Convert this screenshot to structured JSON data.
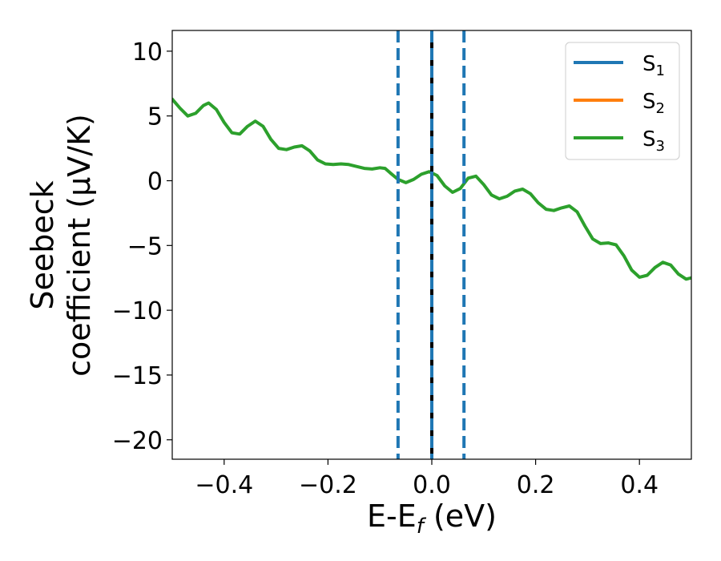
{
  "chart_data": {
    "type": "line",
    "xlabel_main": "E-E",
    "xlabel_sub": "f",
    "xlabel_tail": " (eV)",
    "ylabel_line1": "Seebeck",
    "ylabel_line2": "coefficient  (μV/K)",
    "xlim": [
      -0.5,
      0.5
    ],
    "ylim": [
      -21.5,
      11.6
    ],
    "xticks": [
      -0.4,
      -0.2,
      0.0,
      0.2,
      0.4
    ],
    "xtick_labels": [
      "−0.4",
      "−0.2",
      "0.0",
      "0.2",
      "0.4"
    ],
    "yticks": [
      10,
      5,
      0,
      -5,
      -10,
      -15,
      -20
    ],
    "ytick_labels": [
      "10",
      "5",
      "0",
      "−5",
      "−10",
      "−15",
      "−20"
    ],
    "grid": false,
    "legend_position": "top-right",
    "series": [
      {
        "name_main": "S",
        "name_sub": "1",
        "color": "#1f77b4",
        "points": []
      },
      {
        "name_main": "S",
        "name_sub": "2",
        "color": "#ff7f0e",
        "points": []
      },
      {
        "name_main": "S",
        "name_sub": "3",
        "color": "#2ca02c",
        "points": [
          [
            -0.5,
            6.3
          ],
          [
            -0.485,
            5.6
          ],
          [
            -0.47,
            5.0
          ],
          [
            -0.455,
            5.2
          ],
          [
            -0.44,
            5.8
          ],
          [
            -0.43,
            6.0
          ],
          [
            -0.415,
            5.5
          ],
          [
            -0.4,
            4.5
          ],
          [
            -0.385,
            3.7
          ],
          [
            -0.37,
            3.6
          ],
          [
            -0.355,
            4.2
          ],
          [
            -0.34,
            4.6
          ],
          [
            -0.325,
            4.2
          ],
          [
            -0.31,
            3.2
          ],
          [
            -0.295,
            2.5
          ],
          [
            -0.28,
            2.4
          ],
          [
            -0.265,
            2.6
          ],
          [
            -0.25,
            2.7
          ],
          [
            -0.235,
            2.3
          ],
          [
            -0.22,
            1.6
          ],
          [
            -0.205,
            1.3
          ],
          [
            -0.19,
            1.25
          ],
          [
            -0.175,
            1.3
          ],
          [
            -0.16,
            1.25
          ],
          [
            -0.145,
            1.1
          ],
          [
            -0.13,
            0.95
          ],
          [
            -0.115,
            0.9
          ],
          [
            -0.1,
            1.0
          ],
          [
            -0.09,
            0.95
          ],
          [
            -0.08,
            0.6
          ],
          [
            -0.065,
            0.1
          ],
          [
            -0.05,
            -0.15
          ],
          [
            -0.035,
            0.1
          ],
          [
            -0.02,
            0.5
          ],
          [
            -0.005,
            0.7
          ],
          [
            0.01,
            0.4
          ],
          [
            0.025,
            -0.4
          ],
          [
            0.04,
            -0.9
          ],
          [
            0.055,
            -0.6
          ],
          [
            0.07,
            0.2
          ],
          [
            0.085,
            0.35
          ],
          [
            0.1,
            -0.3
          ],
          [
            0.115,
            -1.1
          ],
          [
            0.13,
            -1.4
          ],
          [
            0.145,
            -1.2
          ],
          [
            0.16,
            -0.8
          ],
          [
            0.175,
            -0.65
          ],
          [
            0.19,
            -1.0
          ],
          [
            0.205,
            -1.7
          ],
          [
            0.22,
            -2.2
          ],
          [
            0.235,
            -2.3
          ],
          [
            0.25,
            -2.1
          ],
          [
            0.265,
            -1.95
          ],
          [
            0.28,
            -2.4
          ],
          [
            0.295,
            -3.5
          ],
          [
            0.31,
            -4.5
          ],
          [
            0.325,
            -4.85
          ],
          [
            0.34,
            -4.8
          ],
          [
            0.355,
            -4.95
          ],
          [
            0.37,
            -5.8
          ],
          [
            0.385,
            -6.9
          ],
          [
            0.4,
            -7.45
          ],
          [
            0.415,
            -7.3
          ],
          [
            0.43,
            -6.7
          ],
          [
            0.445,
            -6.3
          ],
          [
            0.46,
            -6.5
          ],
          [
            0.475,
            -7.2
          ],
          [
            0.49,
            -7.6
          ],
          [
            0.5,
            -7.5
          ]
        ]
      }
    ],
    "vlines": [
      {
        "x": -0.065,
        "style": "dashed",
        "color": "#1f77b4"
      },
      {
        "x": 0.0,
        "style": "solid",
        "color": "#000000"
      },
      {
        "x": 0.0,
        "style": "dashed",
        "color": "#1f77b4"
      },
      {
        "x": 0.062,
        "style": "dashed",
        "color": "#1f77b4"
      }
    ]
  }
}
